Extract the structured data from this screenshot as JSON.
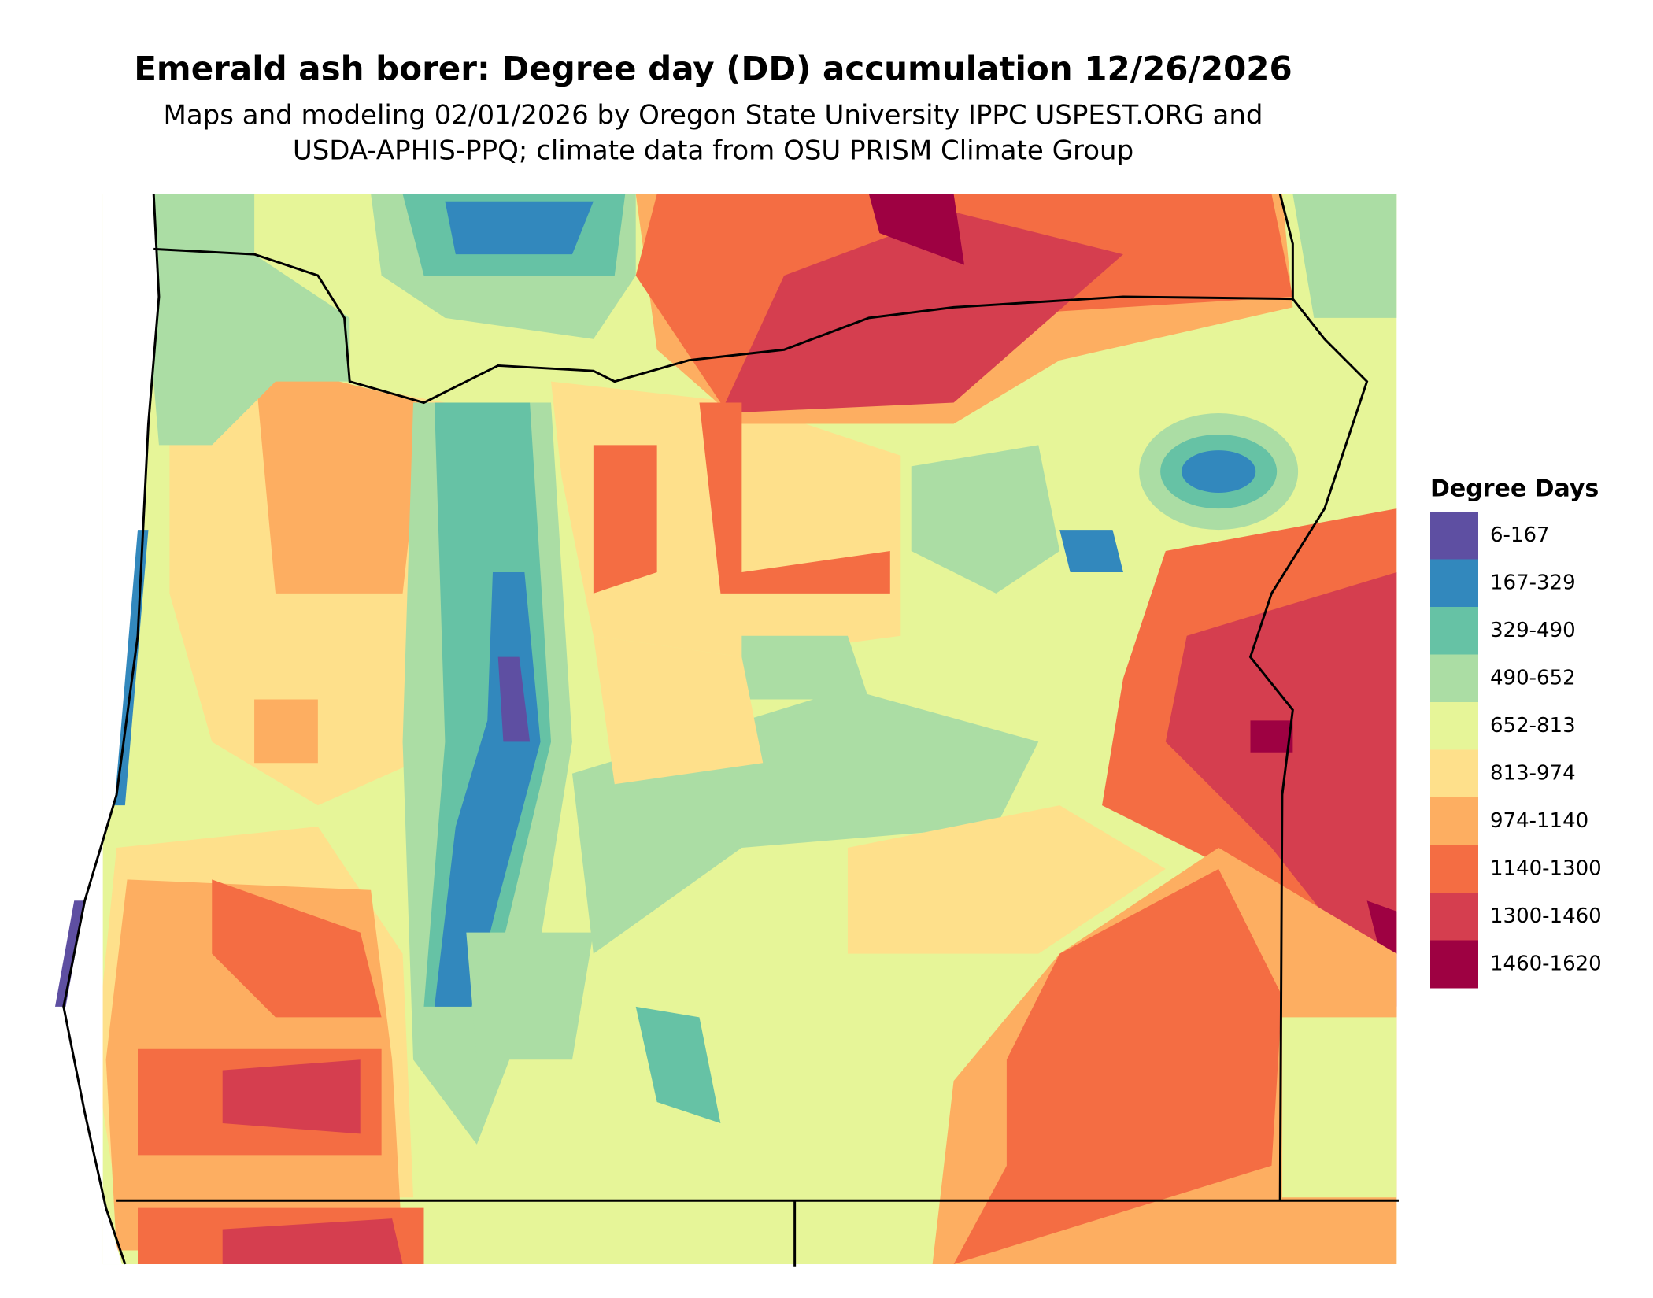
{
  "header": {
    "title": "Emerald ash borer: Degree day (DD) accumulation 12/26/2026",
    "subtitle_lines": [
      "Maps and modeling 02/01/2026 by Oregon State University IPPC USPEST.ORG and",
      "USDA-APHIS-PPQ; climate data from OSU PRISM Climate Group"
    ]
  },
  "legend": {
    "title": "Degree Days",
    "items": [
      {
        "label": "6-167",
        "color": "#5e4fa2"
      },
      {
        "label": "167-329",
        "color": "#3288bd"
      },
      {
        "label": "329-490",
        "color": "#66c2a5"
      },
      {
        "label": "490-652",
        "color": "#abdda4"
      },
      {
        "label": "652-813",
        "color": "#e6f598"
      },
      {
        "label": "813-974",
        "color": "#fee08b"
      },
      {
        "label": "974-1140",
        "color": "#fdae61"
      },
      {
        "label": "1140-1300",
        "color": "#f46d43"
      },
      {
        "label": "1300-1460",
        "color": "#d53e4f"
      },
      {
        "label": "1460-1620",
        "color": "#9e0142"
      }
    ]
  }
}
